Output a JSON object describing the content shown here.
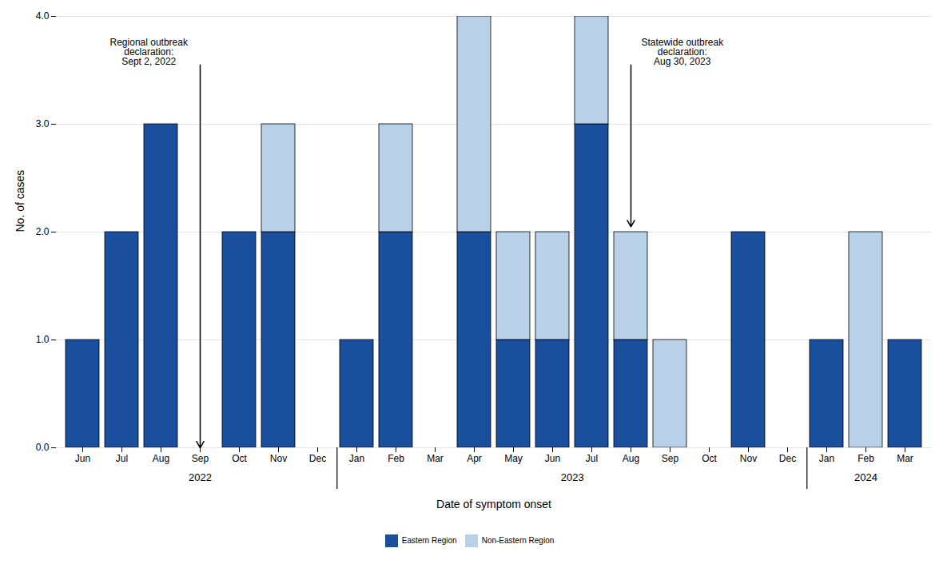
{
  "chart_data": {
    "type": "bar",
    "stacked": true,
    "xlabel": "Date of symptom onset",
    "ylabel": "No. of cases",
    "categories": [
      "Jun",
      "Jul",
      "Aug",
      "Sep",
      "Oct",
      "Nov",
      "Dec",
      "Jan",
      "Feb",
      "Mar",
      "Apr",
      "May",
      "Jun",
      "Jul",
      "Aug",
      "Sep",
      "Oct",
      "Nov",
      "Dec",
      "Jan",
      "Feb",
      "Mar"
    ],
    "years": [
      "2022",
      "2022",
      "2022",
      "2022",
      "2022",
      "2022",
      "2022",
      "2023",
      "2023",
      "2023",
      "2023",
      "2023",
      "2023",
      "2023",
      "2023",
      "2023",
      "2023",
      "2023",
      "2023",
      "2024",
      "2024",
      "2024"
    ],
    "series": [
      {
        "name": "Eastern Region",
        "color": "#1a4f9e",
        "values": [
          1,
          2,
          3,
          0,
          2,
          2,
          0,
          1,
          2,
          0,
          2,
          1,
          1,
          3,
          1,
          0,
          0,
          2,
          0,
          1,
          0,
          1
        ]
      },
      {
        "name": "Non-Eastern Region",
        "color": "#b8d0e8",
        "values": [
          0,
          0,
          0,
          0,
          0,
          1,
          0,
          0,
          1,
          0,
          2,
          1,
          1,
          1,
          1,
          1,
          0,
          0,
          0,
          0,
          2,
          0
        ]
      }
    ],
    "ylim": [
      0,
      4
    ],
    "yticks": [
      0,
      1,
      2,
      3,
      4
    ],
    "grid": true,
    "legend": "bottom",
    "annotations": [
      {
        "text": "Regional outbreak\ndeclaration:\nSept 2, 2022",
        "x": 3,
        "y": 0,
        "text_y": 3.55
      },
      {
        "text": "Statewide outbreak\ndeclaration:\nAug 30, 2023",
        "x": 14,
        "y": 2.05,
        "text_y": 3.55
      }
    ]
  }
}
